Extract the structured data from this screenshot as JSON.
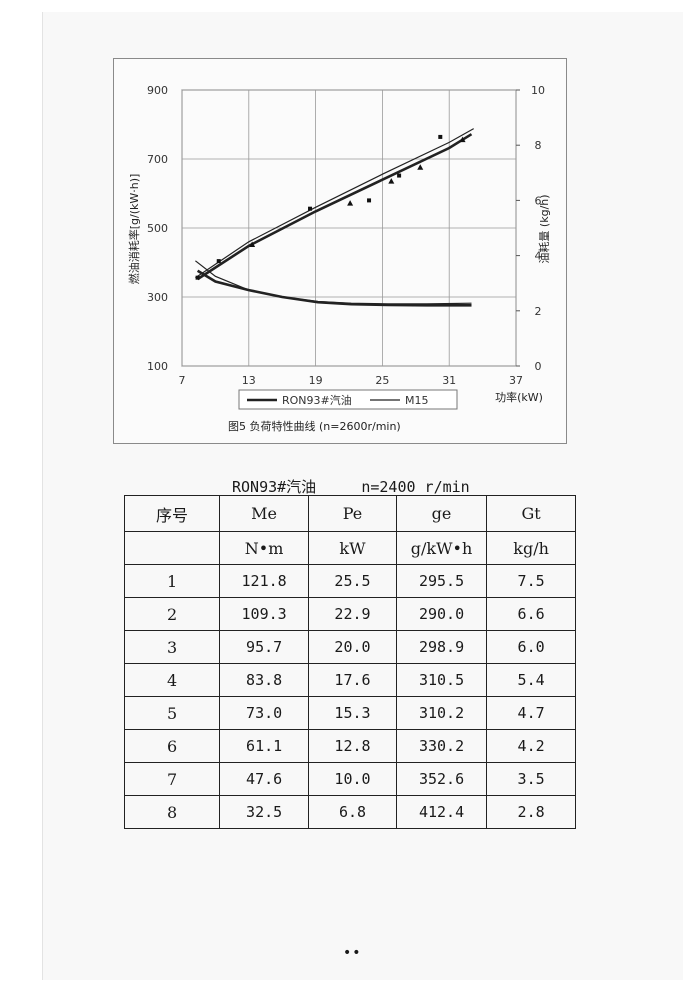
{
  "chart_data": {
    "type": "line",
    "xlabel": "功率(kW)",
    "ylabel": "燃油消耗率[g/(kW·h)]",
    "y2label": "油耗量 (kg/h)",
    "xlim": [
      7,
      37
    ],
    "ylim": [
      100,
      900
    ],
    "y2lim": [
      0,
      10
    ],
    "xticks": [
      "7",
      "13",
      "19",
      "25",
      "31",
      "37"
    ],
    "yticks": [
      "100",
      "300",
      "500",
      "700",
      "900"
    ],
    "y2ticks": [
      "0",
      "2",
      "4",
      "6",
      "8",
      "10"
    ],
    "caption": "图5  负荷特性曲线  (n=2600r/min)",
    "legend": [
      {
        "name": "RON93#汽油",
        "style": "thick"
      },
      {
        "name": "M15",
        "style": "thin"
      }
    ],
    "series": [
      {
        "name": "RON93#汽油",
        "axis": "left",
        "x": [
          8.4,
          10,
          13,
          16,
          19.2,
          22.2,
          25.5,
          29,
          33
        ],
        "y": [
          376,
          345,
          320,
          300,
          285,
          279,
          277,
          276,
          276
        ]
      },
      {
        "name": "M15",
        "axis": "left",
        "x": [
          8.2,
          10,
          13,
          16,
          19.2,
          22.2,
          25.5,
          29,
          33
        ],
        "y": [
          405,
          360,
          320,
          300,
          287,
          282,
          280,
          280,
          282
        ]
      },
      {
        "name": "RON93#汽油",
        "axis": "right",
        "x": [
          8.4,
          13,
          19,
          25,
          31,
          33
        ],
        "y": [
          3.15,
          4.35,
          5.6,
          6.75,
          7.9,
          8.4
        ]
      },
      {
        "name": "M15",
        "axis": "right",
        "x": [
          8.2,
          13,
          19,
          25,
          31,
          33.2
        ],
        "y": [
          3.2,
          4.5,
          5.75,
          6.95,
          8.1,
          8.6
        ]
      }
    ],
    "points": [
      {
        "x": 8.4,
        "y": 3.2,
        "marker": "square"
      },
      {
        "x": 10.3,
        "y": 3.8,
        "marker": "square"
      },
      {
        "x": 13.3,
        "y": 4.4,
        "marker": "triangle"
      },
      {
        "x": 18.5,
        "y": 5.7,
        "marker": "square"
      },
      {
        "x": 22.1,
        "y": 5.9,
        "marker": "triangle"
      },
      {
        "x": 23.8,
        "y": 6.0,
        "marker": "square"
      },
      {
        "x": 25.8,
        "y": 6.7,
        "marker": "triangle"
      },
      {
        "x": 26.5,
        "y": 6.9,
        "marker": "square"
      },
      {
        "x": 28.4,
        "y": 7.2,
        "marker": "triangle"
      },
      {
        "x": 30.2,
        "y": 8.3,
        "marker": "square"
      },
      {
        "x": 32.2,
        "y": 8.2,
        "marker": "triangle"
      }
    ]
  },
  "table": {
    "title": "RON93#汽油     n=2400 r/min",
    "headers": [
      "序号",
      "Me",
      "Pe",
      "ge",
      "Gt"
    ],
    "units": [
      "",
      "N•m",
      "kW",
      "g/kW•h",
      "kg/h"
    ],
    "rows": [
      [
        "1",
        "121.8",
        "25.5",
        "295.5",
        "7.5"
      ],
      [
        "2",
        "109.3",
        "22.9",
        "290.0",
        "6.6"
      ],
      [
        "3",
        "95.7",
        "20.0",
        "298.9",
        "6.0"
      ],
      [
        "4",
        "83.8",
        "17.6",
        "310.5",
        "5.4"
      ],
      [
        "5",
        "73.0",
        "15.3",
        "310.2",
        "4.7"
      ],
      [
        "6",
        "61.1",
        "12.8",
        "330.2",
        "4.2"
      ],
      [
        "7",
        "47.6",
        "10.0",
        "352.6",
        "3.5"
      ],
      [
        "8",
        "32.5",
        "6.8",
        "412.4",
        "2.8"
      ]
    ]
  },
  "footer": {
    "page_mark": "••"
  }
}
